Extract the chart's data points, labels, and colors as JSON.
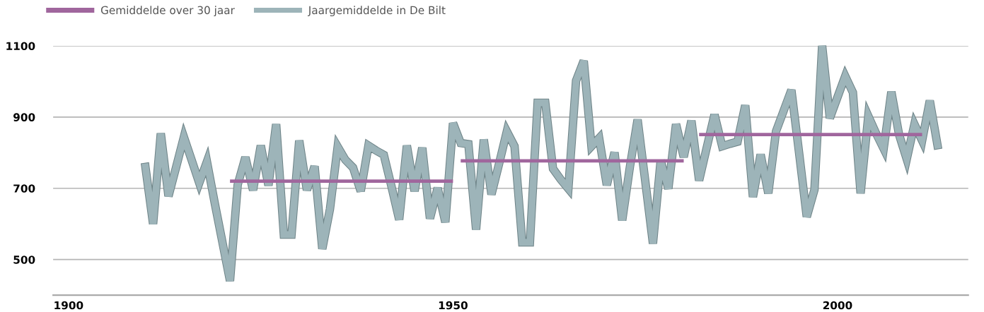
{
  "chart_data": {
    "type": "line",
    "series": [
      {
        "name": "Gemiddelde over 30 jaar",
        "color": "#a0669d",
        "x": [
          1921,
          1950
        ],
        "values": [
          720,
          720
        ]
      },
      {
        "color": "#a0669d",
        "x": [
          1951,
          1980
        ],
        "values": [
          777,
          777
        ]
      },
      {
        "color": "#a0669d",
        "x": [
          1982,
          2011
        ],
        "values": [
          851,
          851
        ]
      },
      {
        "name": "Jaargemiddelde in De Bilt",
        "color": "#9db4b9",
        "x": [
          1910,
          1911,
          1912,
          1913,
          1914,
          1915,
          1916,
          1917,
          1918,
          1919,
          1920,
          1921,
          1922,
          1923,
          1924,
          1925,
          1926,
          1927,
          1928,
          1929,
          1930,
          1931,
          1932,
          1933,
          1934,
          1935,
          1936,
          1937,
          1938,
          1939,
          1940,
          1941,
          1942,
          1943,
          1944,
          1945,
          1946,
          1947,
          1948,
          1949,
          1950,
          1951,
          1952,
          1953,
          1954,
          1955,
          1956,
          1957,
          1958,
          1959,
          1960,
          1961,
          1962,
          1963,
          1964,
          1965,
          1966,
          1967,
          1968,
          1969,
          1970,
          1971,
          1972,
          1973,
          1974,
          1975,
          1976,
          1977,
          1978,
          1979,
          1980,
          1981,
          1982,
          1983,
          1984,
          1985,
          1986,
          1987,
          1988,
          1989,
          1990,
          1991,
          1992,
          1993,
          1994,
          1995,
          1996,
          1997,
          1998,
          1999,
          2000,
          2001,
          2002,
          2003,
          2004,
          2005,
          2006,
          2007,
          2008,
          2009,
          2010,
          2011,
          2012,
          2013
        ],
        "values": [
          760,
          600,
          854,
          678,
          760,
          844,
          780,
          715,
          775,
          660,
          550,
          440,
          710,
          787,
          695,
          820,
          708,
          880,
          570,
          570,
          834,
          695,
          762,
          530,
          642,
          817,
          780,
          758,
          692,
          820,
          806,
          794,
          705,
          612,
          820,
          692,
          814,
          615,
          701,
          605,
          883,
          827,
          824,
          584,
          837,
          683,
          770,
          860,
          818,
          548,
          548,
          940,
          940,
          755,
          725,
          699,
          1002,
          1058,
          818,
          841,
          709,
          801,
          610,
          760,
          893,
          720,
          545,
          778,
          699,
          880,
          788,
          890,
          722,
          815,
          907,
          818,
          825,
          831,
          933,
          676,
          795,
          686,
          860,
          918,
          976,
          800,
          620,
          696,
          1100,
          897,
          956,
          1015,
          969,
          686,
          903,
          855,
          811,
          971,
          851,
          782,
          880,
          834,
          946,
          821
        ]
      }
    ],
    "xlim": [
      1898,
      2017
    ],
    "xticks": [
      1900,
      1950,
      2000
    ],
    "ylim": [
      400,
      1100
    ],
    "yticks": [
      500,
      700,
      900,
      1100
    ],
    "grid": "y",
    "legend": "top left",
    "line_style": "solid",
    "marker": "none"
  }
}
